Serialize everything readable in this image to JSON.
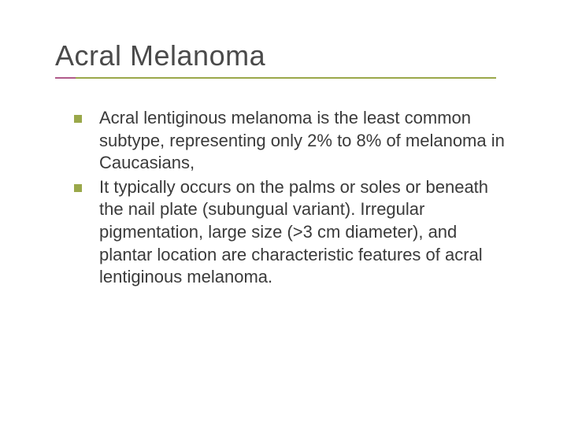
{
  "slide": {
    "title": "Acral Melanoma",
    "title_color": "#4a4a4a",
    "title_fontsize": 36,
    "underline_primary_color": "#9aa84a",
    "underline_accent_color": "#b05a8a",
    "underline_width": 560,
    "underline_accent_width": 26,
    "bullets": [
      {
        "text": "Acral lentiginous melanoma is the least common subtype, representing only 2% to 8% of melanoma in Caucasians,"
      },
      {
        "text": "It typically occurs on the palms or soles or beneath the nail plate (subungual variant). Irregular pigmentation, large size (>3 cm diameter), and plantar location are characteristic features of acral lentiginous melanoma."
      }
    ],
    "bullet_marker_color": "#9aa84a",
    "bullet_text_color": "#3a3a3a",
    "bullet_fontsize": 22,
    "background_color": "#ffffff"
  }
}
